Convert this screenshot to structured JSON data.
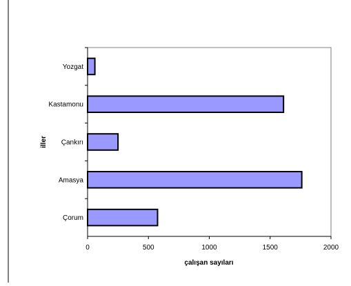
{
  "chart_data": {
    "type": "bar",
    "orientation": "horizontal",
    "categories": [
      "Yozgat",
      "Kastamonu",
      "Çankırı",
      "Amasya",
      "Çorum"
    ],
    "values": [
      60,
      1610,
      250,
      1760,
      575
    ],
    "xlabel": "çalışan sayıları",
    "ylabel": "iller",
    "xlim": [
      0,
      2000
    ],
    "xticks": [
      "0",
      "500",
      "1000",
      "1500",
      "2000"
    ],
    "grid": false,
    "legend": "none"
  },
  "colors": {
    "bar_fill": "#9999ff",
    "bar_stroke": "#000000",
    "axis": "#000000"
  }
}
